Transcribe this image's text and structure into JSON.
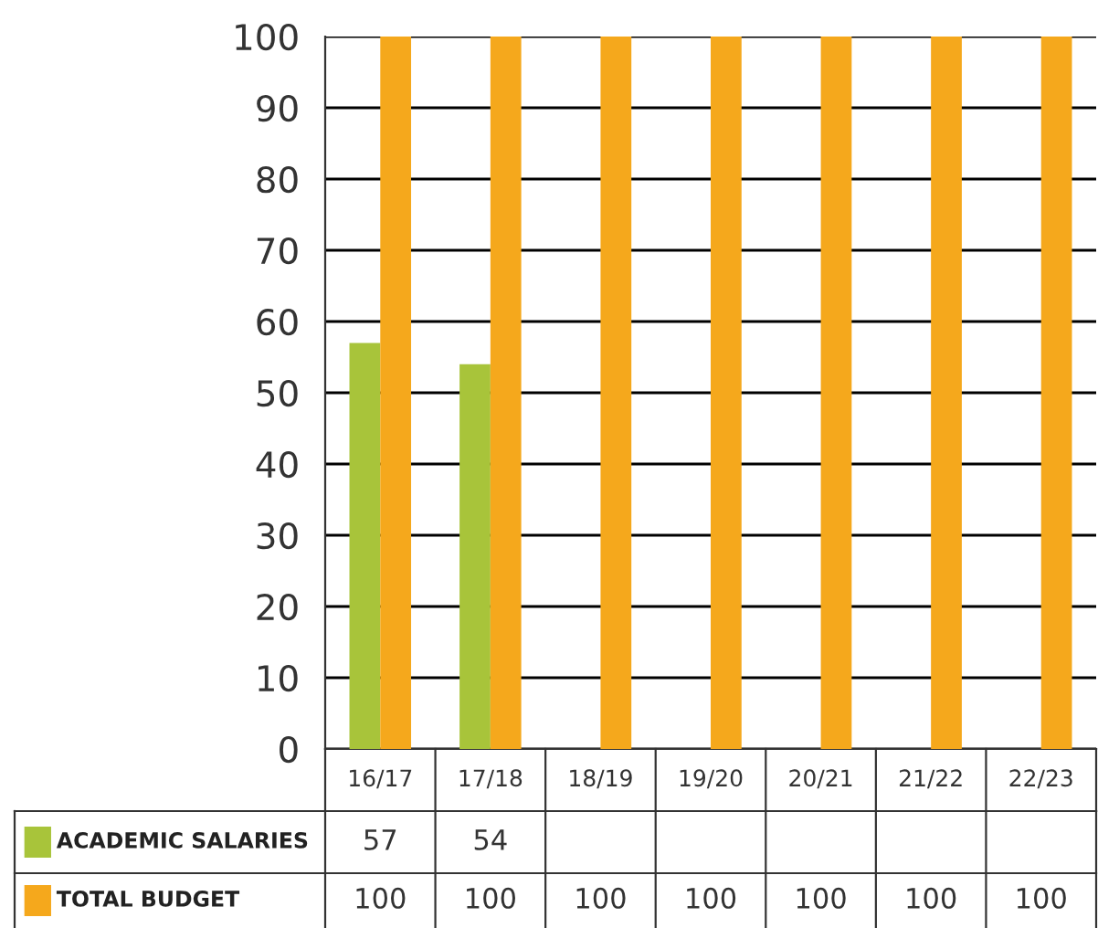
{
  "chart_data": {
    "type": "bar",
    "categories": [
      "16/17",
      "17/18",
      "18/19",
      "19/20",
      "20/21",
      "21/22",
      "22/23"
    ],
    "series": [
      {
        "name": "ACADEMIC SALARIES",
        "color": "#a8c43a",
        "values": [
          57,
          54,
          null,
          null,
          null,
          null,
          null
        ]
      },
      {
        "name": "TOTAL BUDGET",
        "color": "#f5a81c",
        "values": [
          100,
          100,
          100,
          100,
          100,
          100,
          100
        ]
      }
    ],
    "ylim": [
      0,
      100
    ],
    "yticks": [
      0,
      10,
      20,
      30,
      40,
      50,
      60,
      70,
      80,
      90,
      100
    ],
    "grid": "y",
    "legend": "bottom",
    "data_labels": true
  }
}
